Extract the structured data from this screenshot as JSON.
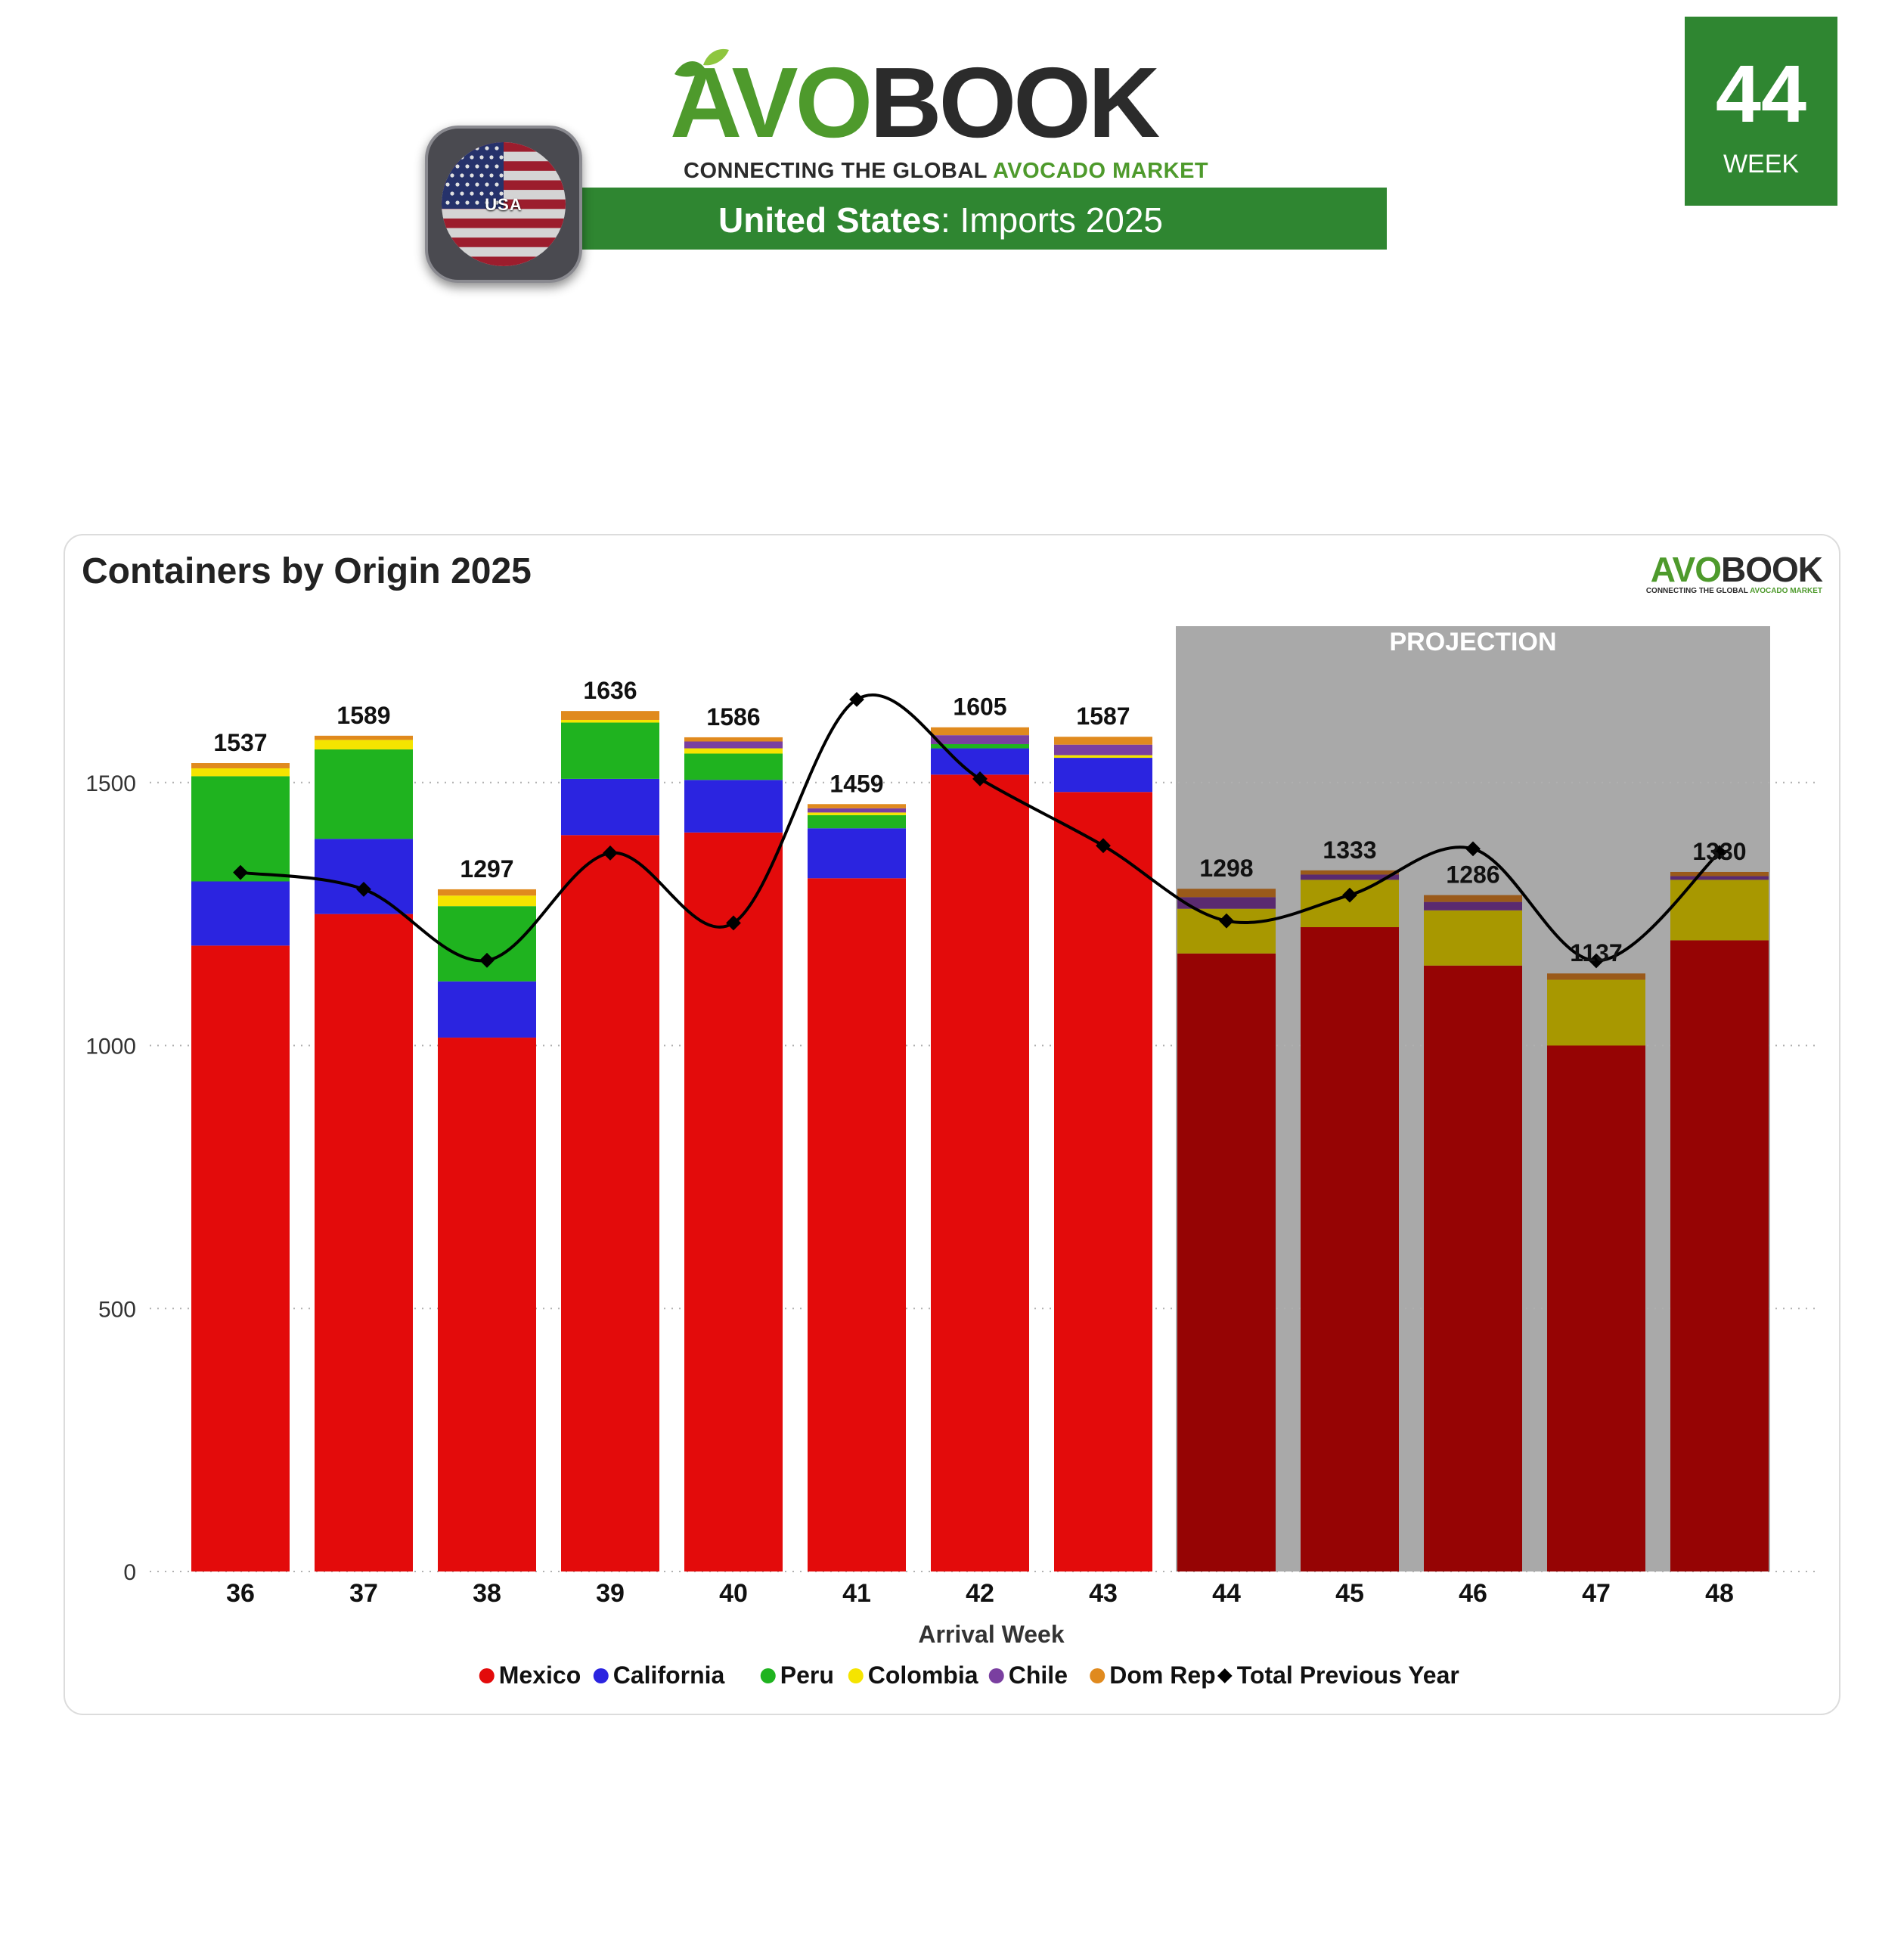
{
  "header": {
    "brand_avo": "AVO",
    "brand_book": "BOOK",
    "tagline_prefix": "CONNECTING THE GLOBAL ",
    "tagline_green": "AVOCADO MARKET",
    "title_country": "United States",
    "title_rest": ": Imports 2025",
    "flag_label": "USA",
    "week_number": "44",
    "week_label": "WEEK"
  },
  "colors": {
    "brand_green": "#2f8631",
    "projection_band": "#a9a9a9"
  },
  "card": {
    "title": "Containers by Origin 2025",
    "projection_label": "PROJECTION"
  },
  "chart_data": {
    "type": "bar",
    "stacked": true,
    "title": "Containers by Origin 2025",
    "xlabel": "Arrival Week",
    "ylabel": "",
    "ylim": [
      0,
      1800
    ],
    "yticks": [
      0,
      500,
      1000,
      1500
    ],
    "grid": "horizontal-dotted",
    "legend_position": "bottom",
    "categories": [
      "36",
      "37",
      "38",
      "39",
      "40",
      "41",
      "42",
      "43",
      "44",
      "45",
      "46",
      "47",
      "48"
    ],
    "projection_start_index": 8,
    "series": [
      {
        "name": "Mexico",
        "color": "#e30b0b",
        "projection_color": "#960404",
        "values": [
          1190,
          1250,
          1015,
          1400,
          1405,
          1318,
          1515,
          1482,
          1175,
          1225,
          1152,
          1000,
          1200
        ]
      },
      {
        "name": "California",
        "color": "#2b24e0",
        "values": [
          122,
          143,
          107,
          107,
          100,
          95,
          50,
          65,
          0,
          0,
          0,
          0,
          0
        ]
      },
      {
        "name": "Peru",
        "color": "#1fb31f",
        "values": [
          200,
          170,
          143,
          107,
          50,
          25,
          8,
          0,
          0,
          0,
          0,
          0,
          0
        ]
      },
      {
        "name": "Colombia",
        "color": "#f5e400",
        "projection_color": "#a89800",
        "values": [
          15,
          18,
          20,
          5,
          10,
          5,
          0,
          5,
          85,
          90,
          105,
          125,
          115
        ]
      },
      {
        "name": "Chile",
        "color": "#7a3fa0",
        "projection_color": "#5a2a70",
        "values": [
          0,
          0,
          0,
          0,
          13,
          8,
          17,
          20,
          22,
          10,
          16,
          0,
          7
        ]
      },
      {
        "name": "Dom Rep",
        "color": "#e08a1e",
        "projection_color": "#9a5a1a",
        "values": [
          10,
          8,
          12,
          17,
          8,
          8,
          15,
          15,
          16,
          8,
          13,
          12,
          8
        ]
      }
    ],
    "totals": [
      1537,
      1589,
      1297,
      1636,
      1586,
      1459,
      1605,
      1587,
      1298,
      1333,
      1286,
      1137,
      1330
    ],
    "line_series": {
      "name": "Total Previous Year",
      "color": "#000000",
      "values": [
        1329,
        1297,
        1162,
        1366,
        1233,
        1658,
        1507,
        1380,
        1237,
        1286,
        1374,
        1161,
        1367
      ]
    }
  }
}
